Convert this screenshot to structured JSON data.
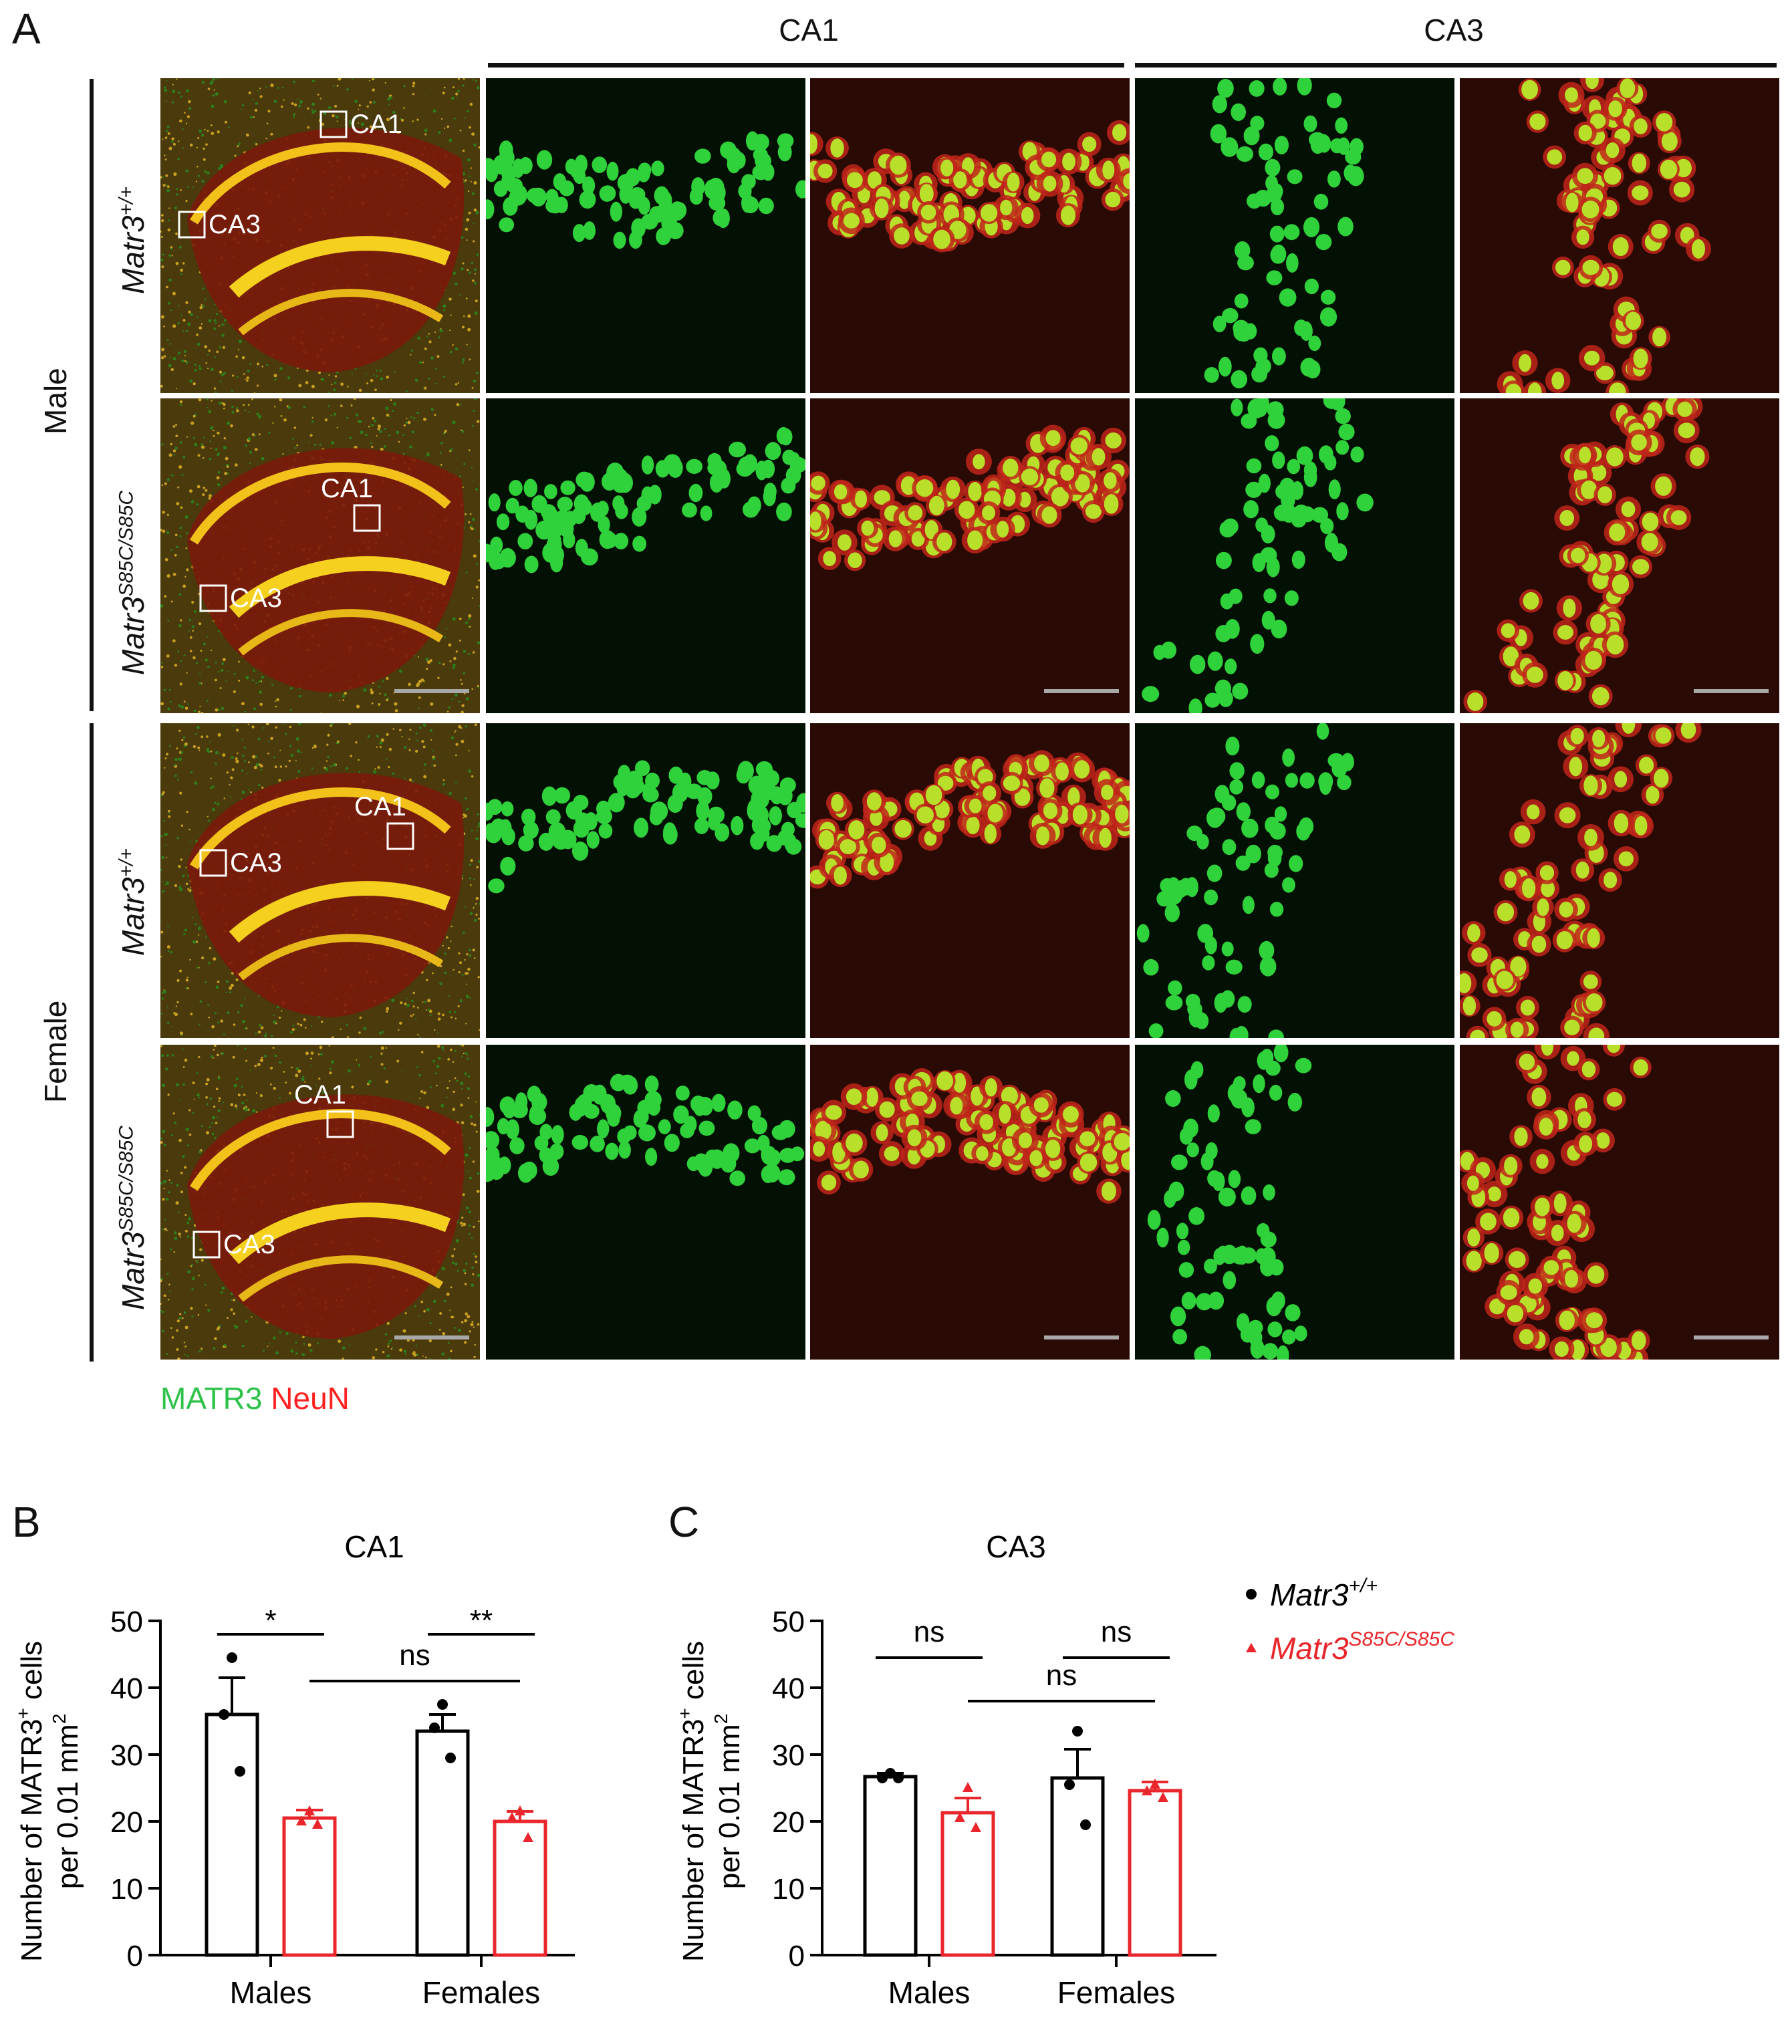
{
  "panelA": {
    "letter": "A",
    "col_headers": {
      "ca1": "CA1",
      "ca3": "CA3"
    },
    "sex_labels": {
      "male": "Male",
      "female": "Female"
    },
    "genotypes": {
      "wt_base": "Matr3",
      "wt_sup": "+/+",
      "mut_base": "Matr3",
      "mut_sup": "S85C/S85C"
    },
    "box_labels": {
      "ca1": "CA1",
      "ca3": "CA3"
    },
    "stain_legend": {
      "matr3": "MATR3",
      "neun": "NeuN",
      "matr3_color": "#2fc24a",
      "neun_color": "#ff2020"
    }
  },
  "panelB": {
    "letter": "B",
    "ylabel_line1": "Number of MATR3",
    "ylabel_sup": "+",
    "ylabel_cells": " cells",
    "ylabel_line2": "per 0.01 mm",
    "ylabel_sup2": "2",
    "sig": [
      "*",
      "**",
      "ns"
    ]
  },
  "panelC": {
    "letter": "C",
    "ylabel_line1": "Number of MATR3",
    "ylabel_sup": "+",
    "ylabel_cells": " cells",
    "ylabel_line2": "per 0.01 mm",
    "ylabel_sup2": "2",
    "sig": [
      "ns",
      "ns",
      "ns"
    ]
  },
  "legend": {
    "wt_base": "Matr3",
    "wt_sup": "+/+",
    "mut_base": "Matr3",
    "mut_sup": "S85C/S85C",
    "wt_color": "#000000",
    "mut_color": "#e8262b"
  },
  "chart_data": [
    {
      "type": "bar",
      "title": "CA1",
      "categories": [
        "Males",
        "Females"
      ],
      "ylim": [
        0,
        50
      ],
      "yticks": [
        0,
        10,
        20,
        30,
        40,
        50
      ],
      "series": [
        {
          "name": "Matr3+/+",
          "color": "#000000",
          "values": [
            36.0,
            33.5
          ],
          "sem": [
            5.5,
            2.5
          ],
          "points": [
            [
              44.5,
              36.0,
              27.5
            ],
            [
              37.5,
              34.0,
              29.5
            ]
          ]
        },
        {
          "name": "Matr3S85C/S85C",
          "color": "#e8262b",
          "values": [
            20.5,
            20.0
          ],
          "sem": [
            1.2,
            1.5
          ],
          "points": [
            [
              21.5,
              20.0,
              19.5
            ],
            [
              21.5,
              20.5,
              17.5
            ]
          ]
        }
      ],
      "comparisons": [
        {
          "label": "*",
          "from": [
            0,
            0
          ],
          "to": [
            0,
            1
          ]
        },
        {
          "label": "**",
          "from": [
            1,
            0
          ],
          "to": [
            1,
            1
          ]
        },
        {
          "label": "ns",
          "from": [
            0,
            1
          ],
          "to": [
            1,
            1
          ]
        }
      ]
    },
    {
      "type": "bar",
      "title": "CA3",
      "categories": [
        "Males",
        "Females"
      ],
      "ylim": [
        0,
        50
      ],
      "yticks": [
        0,
        10,
        20,
        30,
        40,
        50
      ],
      "series": [
        {
          "name": "Matr3+/+",
          "color": "#000000",
          "values": [
            26.7,
            26.5
          ],
          "sem": [
            0.5,
            4.3
          ],
          "points": [
            [
              27.2,
              26.5,
              26.5
            ],
            [
              33.5,
              25.5,
              19.5
            ]
          ]
        },
        {
          "name": "Matr3S85C/S85C",
          "color": "#e8262b",
          "values": [
            21.3,
            24.6
          ],
          "sem": [
            2.2,
            1.3
          ],
          "points": [
            [
              25.0,
              20.5,
              19.0
            ],
            [
              25.5,
              24.5,
              23.5
            ]
          ]
        }
      ],
      "comparisons": [
        {
          "label": "ns",
          "from": [
            0,
            0
          ],
          "to": [
            0,
            1
          ]
        },
        {
          "label": "ns",
          "from": [
            1,
            0
          ],
          "to": [
            1,
            1
          ]
        },
        {
          "label": "ns",
          "from": [
            0,
            1
          ],
          "to": [
            1,
            1
          ]
        }
      ]
    }
  ]
}
